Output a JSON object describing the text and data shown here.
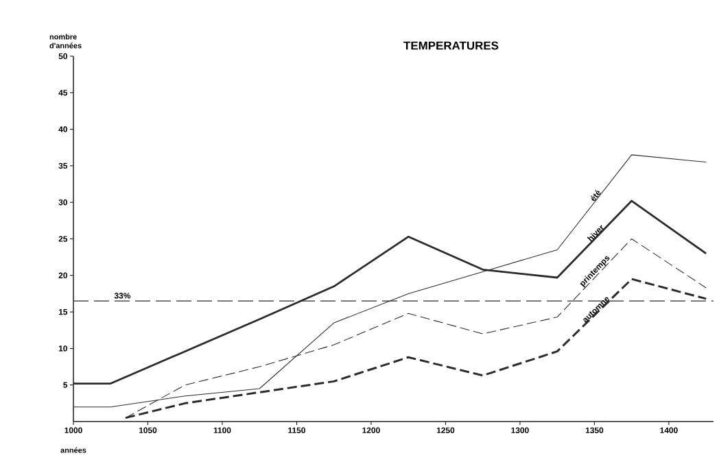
{
  "chart_data": {
    "type": "line",
    "title": "TEMPERATURES",
    "xlabel": "années",
    "ylabel": "nombre d'années",
    "xlim": [
      1000,
      1430
    ],
    "ylim": [
      0,
      50
    ],
    "xticks": [
      1000,
      1050,
      1100,
      1150,
      1200,
      1250,
      1300,
      1350,
      1400
    ],
    "yticks": [
      5,
      10,
      15,
      20,
      25,
      30,
      35,
      40,
      45,
      50
    ],
    "grid": false,
    "legend": false,
    "marker": "none",
    "series": [
      {
        "name": "été",
        "color": "#2b2b2b",
        "line_style": "solid",
        "x": [
          1000,
          1025,
          1075,
          1125,
          1175,
          1225,
          1275,
          1325,
          1375,
          1425
        ],
        "values": [
          2,
          2,
          3.5,
          4.5,
          13.5,
          17.5,
          20.5,
          23.5,
          36.5,
          35.5
        ]
      },
      {
        "name": "hiver",
        "color": "#2b2b2b",
        "line_style": "solid",
        "x": [
          1000,
          1025,
          1075,
          1125,
          1175,
          1225,
          1275,
          1325,
          1375,
          1425
        ],
        "values": [
          5.2,
          5.2,
          9.6,
          14,
          18.5,
          25.3,
          20.8,
          19.7,
          30.2,
          23
        ]
      },
      {
        "name": "printemps",
        "color": "#2b2b2b",
        "line_style": "dashed",
        "x": [
          1035,
          1075,
          1125,
          1175,
          1225,
          1275,
          1325,
          1375,
          1425
        ],
        "values": [
          0.5,
          5,
          7.5,
          10.5,
          14.8,
          12,
          14.3,
          25,
          18.3
        ]
      },
      {
        "name": "automne",
        "color": "#2b2b2b",
        "line_style": "dashed",
        "x": [
          1035,
          1075,
          1125,
          1175,
          1225,
          1275,
          1325,
          1375,
          1425
        ],
        "values": [
          0.5,
          2.5,
          4,
          5.5,
          8.8,
          6.3,
          9.6,
          19.5,
          16.8
        ]
      }
    ],
    "ref_lines": [
      {
        "axis": "y",
        "value": 16.5,
        "color": "#2b2b2b",
        "line_style": "dashed"
      }
    ],
    "annotations": [
      "33%"
    ]
  }
}
